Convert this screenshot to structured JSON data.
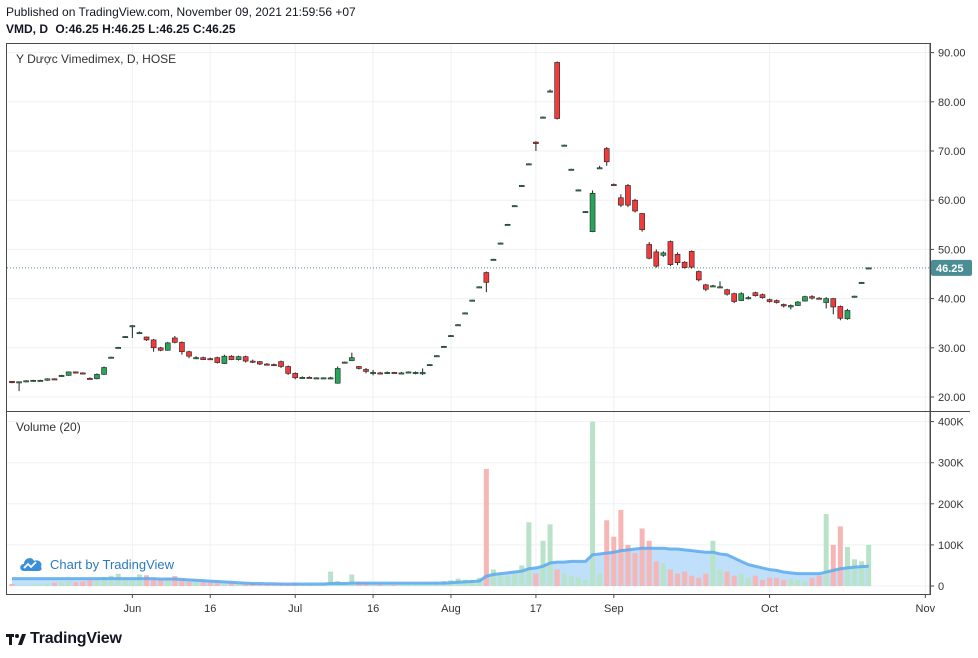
{
  "header": {
    "published": "Published on TradingView.com, November 09, 2021 21:59:56 +07",
    "symbol_interval": "VMD, D",
    "open_label": "O:",
    "open": "46.25",
    "high_label": "H:",
    "high": "46.25",
    "low_label": "L:",
    "low": "46.25",
    "close_label": "C:",
    "close": "46.25"
  },
  "price_pane": {
    "title": "Y Dược Vimedimex, D, HOSE"
  },
  "volume_pane": {
    "title": "Volume (20)"
  },
  "attribution": {
    "label": "Chart by TradingView",
    "icon": "tradingview-cloud-icon"
  },
  "footer": {
    "brand": "TradingView",
    "icon": "tradingview-logo-icon"
  },
  "colors": {
    "up": "#26a65b",
    "down": "#ef3b3b",
    "up_vol": "#b9e3c9",
    "down_vol": "#f6b6b6",
    "ma": "#5aa9f0",
    "ma_fill": "#a9d4f8",
    "last_price_badge": "#4b8c95"
  },
  "chart_data": [
    {
      "type": "candlestick",
      "title": "Y Dược Vimedimex, D, HOSE",
      "x_ticks": [
        "Jun",
        "16",
        "Jul",
        "16",
        "Aug",
        "17",
        "Sep",
        "Oct",
        "Nov"
      ],
      "x_tick_index": [
        17,
        28,
        40,
        51,
        62,
        74,
        85,
        107,
        129
      ],
      "y_ticks": [
        "20.00",
        "30.00",
        "40.00",
        "50.00",
        "60.00",
        "70.00",
        "80.00",
        "90.00"
      ],
      "ylim": [
        17.5,
        92.5
      ],
      "last_price": "46.25",
      "candles": [
        [
          23.2,
          23.2,
          22.8,
          22.9
        ],
        [
          22.9,
          23.1,
          21.2,
          23.1
        ],
        [
          23.1,
          23.4,
          23.0,
          23.3
        ],
        [
          23.3,
          23.5,
          23.1,
          23.4
        ],
        [
          23.4,
          23.5,
          23.3,
          23.4
        ],
        [
          23.4,
          23.8,
          23.3,
          23.7
        ],
        [
          23.7,
          23.8,
          23.5,
          23.6
        ],
        [
          24.3,
          24.5,
          24.1,
          24.4
        ],
        [
          24.4,
          25.2,
          24.3,
          25.1
        ],
        [
          25.1,
          25.2,
          24.8,
          24.9
        ],
        [
          24.9,
          25.0,
          24.7,
          24.8
        ],
        [
          23.8,
          24.0,
          23.6,
          23.7
        ],
        [
          23.7,
          24.8,
          23.6,
          24.6
        ],
        [
          24.6,
          26.2,
          24.5,
          26.0
        ],
        [
          28.0,
          28.2,
          27.9,
          28.1
        ],
        [
          30.0,
          30.2,
          29.9,
          30.1
        ],
        [
          32.2,
          32.4,
          32.1,
          32.3
        ],
        [
          34.4,
          34.6,
          32.0,
          34.5
        ],
        [
          33.0,
          33.3,
          32.8,
          33.1
        ],
        [
          32.2,
          32.3,
          31.4,
          31.6
        ],
        [
          31.6,
          31.8,
          29.2,
          30.0
        ],
        [
          30.0,
          30.2,
          29.3,
          29.5
        ],
        [
          29.5,
          31.2,
          29.4,
          31.0
        ],
        [
          32.0,
          32.4,
          30.9,
          31.1
        ],
        [
          31.1,
          31.3,
          28.6,
          29.2
        ],
        [
          29.2,
          29.4,
          27.9,
          28.3
        ],
        [
          28.0,
          28.3,
          27.7,
          28.0
        ],
        [
          28.0,
          28.2,
          27.5,
          27.6
        ],
        [
          27.8,
          28.0,
          27.6,
          27.7
        ],
        [
          28.0,
          28.2,
          26.8,
          27.0
        ],
        [
          26.8,
          28.6,
          26.7,
          28.3
        ],
        [
          28.3,
          28.5,
          27.5,
          27.6
        ],
        [
          27.6,
          28.4,
          27.4,
          28.2
        ],
        [
          28.2,
          28.4,
          27.0,
          27.3
        ],
        [
          27.3,
          27.6,
          26.9,
          27.2
        ],
        [
          27.2,
          27.3,
          26.5,
          26.7
        ],
        [
          26.7,
          26.9,
          26.4,
          26.6
        ],
        [
          26.6,
          26.8,
          26.3,
          26.5
        ],
        [
          27.2,
          27.4,
          25.9,
          26.2
        ],
        [
          26.2,
          26.4,
          24.5,
          24.8
        ],
        [
          24.8,
          25.0,
          23.6,
          23.9
        ],
        [
          23.9,
          24.2,
          23.7,
          24.0
        ],
        [
          24.0,
          24.2,
          23.8,
          23.9
        ],
        [
          23.9,
          24.0,
          23.8,
          23.9
        ],
        [
          23.9,
          24.0,
          23.8,
          23.9
        ],
        [
          23.9,
          24.1,
          23.8,
          23.9
        ],
        [
          22.8,
          26.2,
          22.7,
          25.8
        ],
        [
          27.0,
          27.2,
          26.8,
          27.1
        ],
        [
          27.4,
          29.0,
          27.3,
          28.0
        ],
        [
          26.2,
          26.3,
          25.6,
          25.8
        ],
        [
          25.6,
          25.9,
          24.8,
          25.2
        ],
        [
          25.0,
          25.5,
          24.4,
          25.0
        ],
        [
          24.9,
          25.1,
          24.7,
          24.8
        ],
        [
          24.8,
          25.2,
          24.7,
          25.0
        ],
        [
          25.0,
          25.1,
          24.8,
          24.9
        ],
        [
          24.8,
          25.1,
          24.7,
          24.9
        ],
        [
          25.0,
          25.2,
          24.9,
          25.1
        ],
        [
          24.8,
          25.2,
          24.6,
          25.0
        ],
        [
          24.7,
          25.8,
          24.5,
          25.0
        ],
        [
          26.5,
          26.7,
          26.3,
          26.6
        ],
        [
          28.3,
          28.5,
          28.2,
          28.4
        ],
        [
          30.2,
          30.4,
          30.1,
          30.3
        ],
        [
          32.4,
          32.6,
          32.3,
          32.5
        ],
        [
          34.6,
          34.8,
          34.5,
          34.7
        ],
        [
          37.0,
          37.2,
          36.9,
          37.1
        ],
        [
          39.6,
          39.8,
          39.5,
          39.7
        ],
        [
          42.3,
          42.5,
          42.2,
          42.4
        ],
        [
          45.3,
          45.5,
          41.3,
          43.3
        ],
        [
          47.9,
          48.1,
          47.8,
          48.0
        ],
        [
          51.2,
          51.4,
          51.1,
          51.3
        ],
        [
          55.0,
          55.2,
          54.9,
          55.1
        ],
        [
          58.8,
          59.0,
          58.7,
          58.9
        ],
        [
          62.9,
          63.1,
          62.8,
          63.0
        ],
        [
          67.3,
          67.5,
          67.2,
          67.4
        ],
        [
          71.8,
          72.0,
          70.0,
          71.5
        ],
        [
          76.8,
          77.0,
          76.7,
          76.9
        ],
        [
          82.2,
          82.5,
          81.9,
          82.2
        ],
        [
          88.0,
          88.2,
          76.4,
          76.6
        ],
        [
          71.1,
          71.3,
          71.0,
          71.2
        ],
        [
          66.2,
          66.4,
          66.1,
          66.3
        ],
        [
          62.0,
          62.2,
          61.9,
          62.1
        ],
        [
          57.6,
          57.8,
          57.5,
          57.7
        ],
        [
          53.6,
          62.0,
          53.5,
          61.4
        ],
        [
          66.6,
          67.0,
          66.4,
          66.6
        ],
        [
          70.5,
          70.8,
          67.0,
          67.8
        ],
        [
          63.2,
          63.4,
          63.0,
          63.1
        ],
        [
          60.5,
          61.2,
          58.6,
          59.0
        ],
        [
          63.0,
          63.3,
          58.6,
          59.0
        ],
        [
          60.0,
          60.3,
          57.5,
          57.8
        ],
        [
          57.3,
          57.4,
          53.6,
          54.0
        ],
        [
          51.0,
          51.5,
          48.0,
          48.2
        ],
        [
          49.5,
          50.0,
          46.3,
          46.6
        ],
        [
          48.8,
          49.6,
          48.5,
          49.3
        ],
        [
          51.6,
          51.8,
          46.6,
          46.9
        ],
        [
          49.0,
          49.4,
          46.8,
          47.3
        ],
        [
          47.4,
          47.6,
          46.1,
          46.3
        ],
        [
          49.6,
          49.8,
          46.1,
          46.4
        ],
        [
          45.5,
          45.7,
          43.5,
          43.8
        ],
        [
          42.8,
          43.0,
          41.5,
          41.9
        ],
        [
          42.6,
          42.8,
          42.4,
          42.6
        ],
        [
          42.3,
          43.5,
          42.2,
          42.4
        ],
        [
          41.8,
          42.0,
          40.6,
          40.9
        ],
        [
          41.0,
          41.2,
          39.1,
          39.4
        ],
        [
          39.6,
          41.3,
          39.5,
          41.0
        ],
        [
          40.0,
          40.5,
          39.8,
          40.2
        ],
        [
          41.2,
          41.4,
          40.4,
          40.6
        ],
        [
          40.8,
          41.0,
          40.0,
          40.2
        ],
        [
          39.8,
          40.0,
          39.2,
          39.4
        ],
        [
          39.6,
          39.8,
          39.0,
          39.2
        ],
        [
          38.8,
          39.0,
          38.2,
          38.5
        ],
        [
          38.3,
          38.8,
          37.8,
          38.6
        ],
        [
          38.6,
          39.5,
          38.5,
          39.3
        ],
        [
          39.5,
          40.6,
          39.4,
          40.4
        ],
        [
          40.4,
          40.7,
          39.8,
          40.1
        ],
        [
          40.1,
          40.3,
          39.9,
          40.0
        ],
        [
          39.2,
          40.3,
          38.0,
          40.0
        ],
        [
          40.0,
          40.1,
          36.8,
          38.3
        ],
        [
          38.4,
          38.6,
          35.6,
          36.0
        ],
        [
          35.9,
          37.9,
          35.7,
          37.6
        ],
        [
          40.4,
          40.6,
          40.2,
          40.5
        ],
        [
          43.2,
          43.4,
          43.1,
          43.3
        ],
        [
          46.1,
          46.3,
          46.1,
          46.25
        ]
      ]
    },
    {
      "type": "bar",
      "title": "Volume (20)",
      "y_ticks": [
        "0",
        "100K",
        "200K",
        "300K",
        "400K"
      ],
      "ylim": [
        0,
        400000
      ],
      "volumes": [
        5000,
        3000,
        2000,
        4000,
        3000,
        6000,
        8000,
        10000,
        12000,
        9000,
        11000,
        14000,
        18000,
        22000,
        25000,
        30000,
        20000,
        15000,
        28000,
        26000,
        18000,
        14000,
        20000,
        24000,
        16000,
        10000,
        12000,
        9000,
        8000,
        7000,
        6000,
        8000,
        5000,
        6000,
        7000,
        4000,
        5000,
        3000,
        6000,
        5000,
        7000,
        4000,
        3000,
        3000,
        6000,
        35000,
        12000,
        8000,
        28000,
        10000,
        9000,
        6000,
        4000,
        5000,
        3000,
        4000,
        6000,
        5000,
        4000,
        8000,
        10000,
        12000,
        14000,
        18000,
        15000,
        14000,
        20000,
        285000,
        40000,
        30000,
        25000,
        35000,
        50000,
        155000,
        30000,
        110000,
        150000,
        40000,
        30000,
        25000,
        20000,
        15000,
        400000,
        30000,
        160000,
        120000,
        185000,
        100000,
        80000,
        140000,
        110000,
        60000,
        55000,
        40000,
        30000,
        35000,
        25000,
        20000,
        30000,
        110000,
        40000,
        35000,
        25000,
        30000,
        20000,
        25000,
        15000,
        20000,
        20000,
        15000,
        18000,
        15000,
        12000,
        20000,
        25000,
        175000,
        100000,
        145000,
        95000,
        65000,
        60000,
        100000
      ],
      "ma20": [
        18000,
        18000,
        18000,
        18000,
        18000,
        18000,
        18000,
        18000,
        18000,
        18000,
        18000,
        18000,
        18000,
        18000,
        18000,
        18000,
        18000,
        18000,
        18000,
        18000,
        18000,
        17000,
        17000,
        17000,
        16000,
        15000,
        14000,
        13000,
        12000,
        11000,
        10000,
        9000,
        8000,
        7000,
        6000,
        6000,
        5500,
        5500,
        5000,
        5000,
        5000,
        5000,
        5000,
        5000,
        5000,
        6000,
        6000,
        6000,
        7000,
        7000,
        7000,
        7000,
        7000,
        7000,
        7000,
        7000,
        7000,
        7000,
        7000,
        7000,
        7000,
        7000,
        8000,
        9000,
        10000,
        11000,
        12000,
        24000,
        28000,
        30000,
        32000,
        34000,
        36000,
        42000,
        44000,
        48000,
        56000,
        58000,
        58000,
        60000,
        60000,
        60000,
        76000,
        78000,
        80000,
        82000,
        86000,
        88000,
        90000,
        92000,
        92000,
        92000,
        92000,
        90000,
        90000,
        88000,
        86000,
        84000,
        82000,
        82000,
        78000,
        76000,
        68000,
        60000,
        52000,
        48000,
        44000,
        40000,
        38000,
        34000,
        32000,
        30000,
        30000,
        30000,
        30000,
        34000,
        38000,
        42000,
        44000,
        46000,
        47000,
        48000
      ]
    }
  ]
}
